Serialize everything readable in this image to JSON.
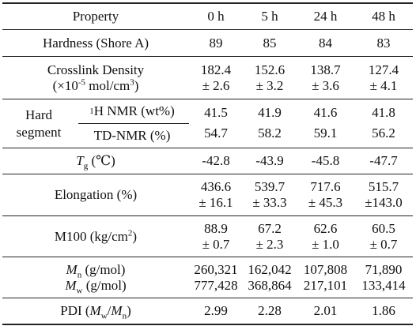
{
  "header": {
    "property": "Property",
    "t0": "0 h",
    "t5": "5 h",
    "t24": "24 h",
    "t48": "48 h"
  },
  "hardness": {
    "label": "Hardness (Shore A)",
    "values": [
      "89",
      "85",
      "84",
      "83"
    ]
  },
  "crosslink": {
    "label_line1": "Crosslink Density",
    "label_line2_pre": "(×10",
    "label_line2_exp": "-5",
    "label_line2_mid": " mol/cm",
    "label_line2_exp2": "3",
    "label_line2_post": ")",
    "values": [
      "182.4",
      "152.6",
      "138.7",
      "127.4"
    ],
    "errors": [
      "± 2.6",
      "± 3.2",
      "± 3.6",
      "± 4.1"
    ]
  },
  "hard_segment": {
    "group_line1": "Hard",
    "group_line2": "segment",
    "nmr_label_sup": "1",
    "nmr_label_rest": "H NMR (wt%)",
    "nmr_values": [
      "41.5",
      "41.9",
      "41.6",
      "41.8"
    ],
    "td_label": "TD-NMR (%)",
    "td_values": [
      "54.7",
      "58.2",
      "59.1",
      "56.2"
    ]
  },
  "tg": {
    "label_T": "T",
    "label_sub": "g",
    "label_unit": " (℃)",
    "values": [
      "-42.8",
      "-43.9",
      "-45.8",
      "-47.7"
    ]
  },
  "elongation": {
    "label": "Elongation (%)",
    "values": [
      "436.6",
      "539.7",
      "717.6",
      "515.7"
    ],
    "errors": [
      "± 16.1",
      "± 33.3",
      "± 45.3",
      "±143.0"
    ]
  },
  "m100": {
    "label_pre": "M100 (kg/cm",
    "label_exp": "2",
    "label_post": ")",
    "values": [
      "88.9",
      "67.2",
      "62.6",
      "60.5"
    ],
    "errors": [
      "± 0.7",
      "± 2.3",
      "± 1.0",
      "± 0.7"
    ]
  },
  "molar_mass": {
    "mn_M": "M",
    "mn_sub": "n",
    "mn_unit": " (g/mol)",
    "mw_M": "M",
    "mw_sub": "w",
    "mw_unit": " (g/mol)",
    "mn_values": [
      "260,321",
      "162,042",
      "107,808",
      "71,890"
    ],
    "mw_values": [
      "777,428",
      "368,864",
      "217,101",
      "133,414"
    ]
  },
  "pdi": {
    "label_pre": "PDI (",
    "label_Mw": "M",
    "label_w": "w",
    "label_slash": "/",
    "label_Mn": "M",
    "label_n": "n",
    "label_post": ")",
    "values": [
      "2.99",
      "2.28",
      "2.01",
      "1.86"
    ]
  }
}
